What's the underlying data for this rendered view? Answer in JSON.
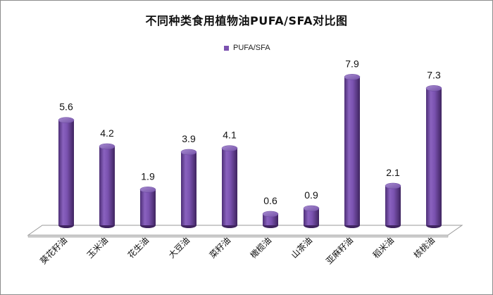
{
  "chart_data": {
    "type": "bar",
    "title": "不同种类食用植物油PUFA/SFA对比图",
    "legend": "PUFA/SFA",
    "legend_position": "top-center",
    "categories": [
      "葵花籽油",
      "玉米油",
      "花生油",
      "大豆油",
      "菜籽油",
      "橄榄油",
      "山茶油",
      "亚麻籽油",
      "稻米油",
      "核桃油"
    ],
    "series": [
      {
        "name": "PUFA/SFA",
        "values": [
          5.6,
          4.2,
          1.9,
          3.9,
          4.1,
          0.6,
          0.9,
          7.9,
          2.1,
          7.3
        ],
        "color": "#7c52b0"
      }
    ],
    "data_labels": [
      "5.6",
      "4.2",
      "1.9",
      "3.9",
      "4.1",
      "0.6",
      "0.9",
      "7.9",
      "2.1",
      "7.3"
    ],
    "ylim": [
      0,
      9
    ],
    "grid": false,
    "style": "3d-cylinder"
  }
}
